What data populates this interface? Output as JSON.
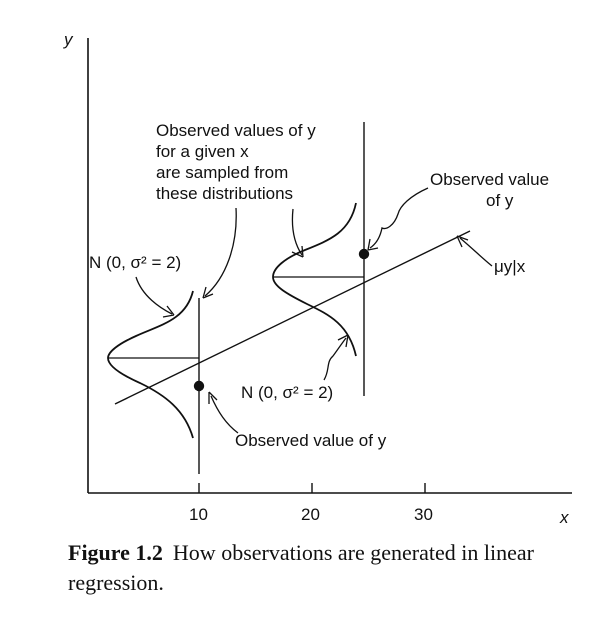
{
  "axes": {
    "x_label": "x",
    "y_label": "y",
    "x_ticks": [
      "10",
      "20",
      "30"
    ]
  },
  "annotations": {
    "observed_values_line1": "Observed values of y",
    "observed_values_line2": "for a given x",
    "observed_values_line3": "are sampled from",
    "observed_values_line4": "these distributions",
    "observed_value_right_line1": "Observed value",
    "observed_value_right_line2": "of y",
    "dist_left": "N (0, σ² = 2)",
    "dist_right": "N (0, σ² = 2)",
    "observed_value_bottom": "Observed value of y",
    "mean_line": "μy|x"
  },
  "caption": {
    "label": "Figure 1.2",
    "text": "How observations are generated in linear regression."
  }
}
